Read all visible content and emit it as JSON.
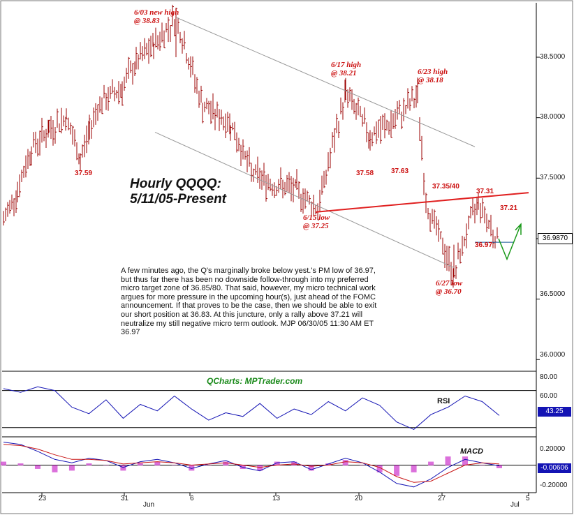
{
  "title": {
    "line1": "Hourly QQQQ:",
    "line2": "5/11/05-Present"
  },
  "commentary": "A few minutes ago, the Q's marginally broke below yest.'s PM low of 36.97, but thus far there has been no downside follow-through into my preferred micro target zone of 36.85/80. That said, however, my micro technical work argues for more pressure in the upcoming hour(s), just ahead of the FOMC announcement. If that proves to be the case, then we should be able to exit our short position at 36.83. At this juncture, only a rally above 37.21 will neutralize my still negative micro term outlook.  MJP 06/30/05 11:30 AM ET 36.97",
  "watermark": "QCharts: MPTrader.com",
  "annotations": {
    "a603": {
      "l1": "6/03 new high",
      "l2": "@ 38.83"
    },
    "a617": {
      "l1": "6/17 high",
      "l2": "@ 38.21"
    },
    "a623": {
      "l1": "6/23 high",
      "l2": "@ 38.18"
    },
    "a615": {
      "l1": "6/15 low",
      "l2": "@ 37.25"
    },
    "a627": {
      "l1": "6/27 low",
      "l2": "@ 36.70"
    },
    "v3759": "37.59",
    "v3758": "37.58",
    "v3763": "37.63",
    "v3735": "37.35/40",
    "v3731": "37.31",
    "v3721": "37.21",
    "v3697": "36.97"
  },
  "colors": {
    "price_bars": "#9b0000",
    "rsi": "#1414b4",
    "macd_line": "#1414b4",
    "signal_line": "#c81414",
    "histogram": "#cc33cc",
    "annotation": "#cc1111",
    "trendline": "#e02020",
    "channel": "#999999",
    "projection": "#1a9a1a",
    "watermark": "#1a8a1a"
  },
  "chart_data": [
    {
      "type": "line",
      "series_kind": "hourly price bars",
      "ylim": [
        35.85,
        38.95
      ],
      "y_ticks": [
        "38.5000",
        "38.0000",
        "37.5000",
        "37.0000",
        "36.5000",
        "36.0000"
      ],
      "last_value": "36.9870",
      "x_ticks": [
        "23",
        "31",
        "Jun",
        "6",
        "13",
        "20",
        "27",
        "5",
        "Jul"
      ],
      "x": [
        "5/11",
        "5/13",
        "5/16",
        "5/18",
        "5/20",
        "5/23",
        "5/25",
        "5/27",
        "5/31",
        "6/01",
        "6/02",
        "6/03",
        "6/06",
        "6/08",
        "6/10",
        "6/13",
        "6/14",
        "6/15",
        "6/17",
        "6/20",
        "6/22",
        "6/23",
        "6/24",
        "6/27",
        "6/28",
        "6/29",
        "6/30"
      ],
      "values": [
        37.15,
        37.4,
        37.75,
        37.9,
        38.0,
        37.65,
        37.9,
        38.1,
        38.25,
        38.45,
        38.6,
        38.83,
        38.1,
        37.95,
        37.55,
        37.45,
        37.4,
        37.25,
        38.21,
        37.85,
        37.95,
        38.18,
        37.3,
        36.7,
        37.05,
        37.31,
        36.97
      ],
      "levels": {
        "6/03 new high": 38.83,
        "6/17 high": 38.21,
        "6/23 high": 38.18,
        "6/15 low": 37.25,
        "6/27 low": 36.7
      }
    },
    {
      "type": "line",
      "name": "RSI",
      "ylim": [
        20,
        90
      ],
      "y_ticks": [
        "80.00",
        "60.00"
      ],
      "last_value": "43.25",
      "bands": [
        70,
        30
      ],
      "values": [
        72,
        68,
        74,
        70,
        52,
        45,
        60,
        40,
        55,
        48,
        64,
        50,
        38,
        46,
        42,
        56,
        40,
        50,
        44,
        58,
        48,
        62,
        54,
        36,
        28,
        44,
        52,
        64,
        58,
        43
      ]
    },
    {
      "type": "line",
      "name": "MACD",
      "ylim": [
        -0.24,
        0.24
      ],
      "y_ticks": [
        "0.20000",
        "-0.20000"
      ],
      "last_value": "-0.00606",
      "macd": [
        0.2,
        0.18,
        0.12,
        0.05,
        0.02,
        0.06,
        0.04,
        -0.02,
        0.03,
        0.05,
        0.02,
        -0.03,
        0.01,
        0.04,
        -0.02,
        -0.05,
        0.02,
        0.03,
        -0.04,
        0.01,
        0.06,
        0.02,
        -0.06,
        -0.16,
        -0.19,
        -0.12,
        -0.02,
        0.05,
        0.02,
        -0.006
      ],
      "signal": [
        0.18,
        0.17,
        0.14,
        0.09,
        0.05,
        0.05,
        0.04,
        0.01,
        0.02,
        0.03,
        0.02,
        0.0,
        0.01,
        0.02,
        0.0,
        -0.02,
        0.0,
        0.01,
        -0.01,
        0.0,
        0.03,
        0.02,
        -0.02,
        -0.1,
        -0.15,
        -0.14,
        -0.07,
        0.0,
        0.02,
        0.01
      ]
    }
  ]
}
